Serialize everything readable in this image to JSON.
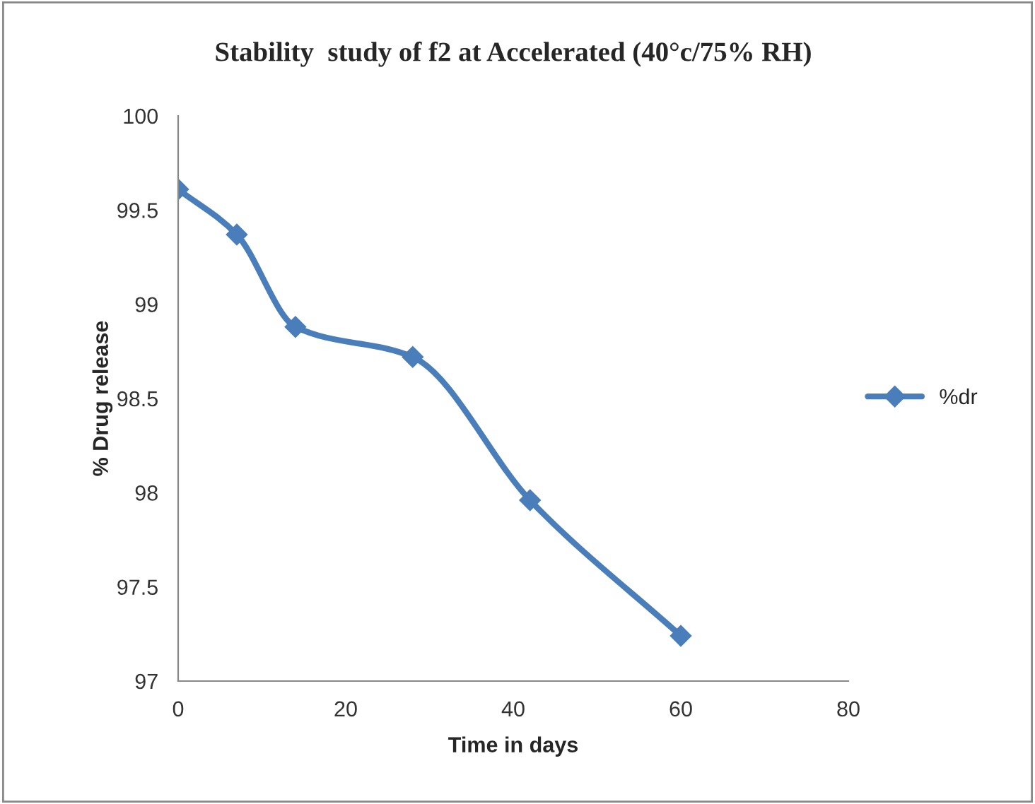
{
  "chart_data": {
    "type": "line",
    "title": "Stability  study of f2 at Accelerated (40°c/75% RH)",
    "xlabel": "Time in days",
    "ylabel": "% Drug release",
    "x": [
      0,
      7,
      14,
      28,
      42,
      60
    ],
    "series": [
      {
        "name": "%dr",
        "color": "#4a7ebb",
        "values": [
          99.61,
          99.37,
          98.88,
          98.72,
          97.96,
          97.24
        ]
      }
    ],
    "xlim": [
      0,
      80
    ],
    "xticks": [
      0,
      20,
      40,
      60,
      80
    ],
    "ylim": [
      97,
      100
    ],
    "yticks": [
      97,
      97.5,
      98,
      98.5,
      99,
      99.5,
      100
    ],
    "marker": "diamond",
    "line_style": "solid",
    "legend": "right",
    "grid": false
  }
}
